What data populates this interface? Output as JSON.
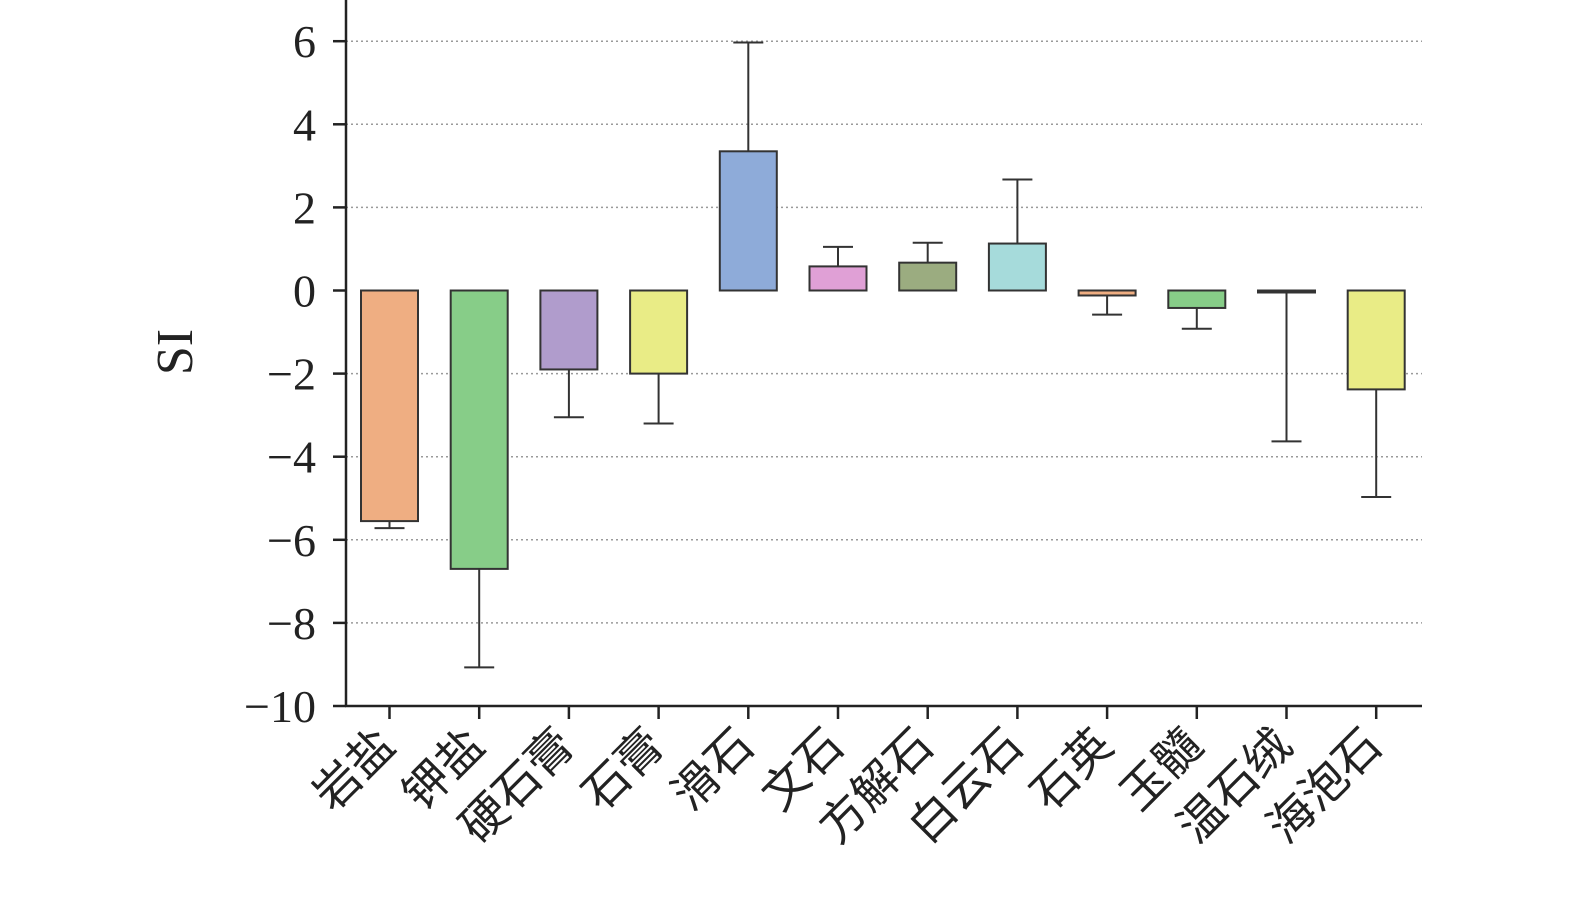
{
  "chart_data": {
    "type": "bar",
    "title": "",
    "xlabel": "",
    "ylabel": "SI",
    "ylim": [
      -10,
      7
    ],
    "yticks": [
      6,
      4,
      2,
      0,
      -2,
      -4,
      -6,
      -8,
      -10
    ],
    "ytick_labels": [
      "6",
      "4",
      "2",
      "0",
      "−2",
      "−4",
      "−6",
      "−8",
      "−10"
    ],
    "grid": "horizontal dotted",
    "categories": [
      "岩盐",
      "钾盐",
      "硬石膏",
      "石膏",
      "滑石",
      "文石",
      "方解石",
      "白云石",
      "石英",
      "玉髓",
      "温石绒",
      "海泡石"
    ],
    "values": [
      -5.55,
      -6.7,
      -1.9,
      -2.0,
      3.35,
      0.58,
      0.67,
      1.13,
      -0.12,
      -0.42,
      -0.02,
      -2.38
    ],
    "error_end": [
      -5.72,
      -9.07,
      -3.05,
      -3.2,
      5.97,
      1.05,
      1.15,
      2.67,
      -0.58,
      -0.92,
      -3.63,
      -4.97
    ],
    "colors": [
      "#efae82",
      "#87cd88",
      "#b09ccc",
      "#e9ec86",
      "#8eabd9",
      "#e0a0d6",
      "#9bac80",
      "#a6dbdb",
      "#efae82",
      "#87cd88",
      "#a6dbdb",
      "#e9ec86"
    ]
  }
}
